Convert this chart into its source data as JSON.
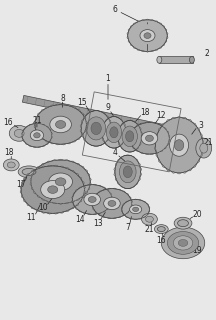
{
  "bg_color": "#e8e8e8",
  "fg_color": "#555555",
  "dark_color": "#333333",
  "gear_fill": "#aaaaaa",
  "gear_edge": "#444444",
  "hub_fill": "#cccccc",
  "shaft_fill": "#999999",
  "fig_w": 2.16,
  "fig_h": 3.2,
  "dpi": 100
}
